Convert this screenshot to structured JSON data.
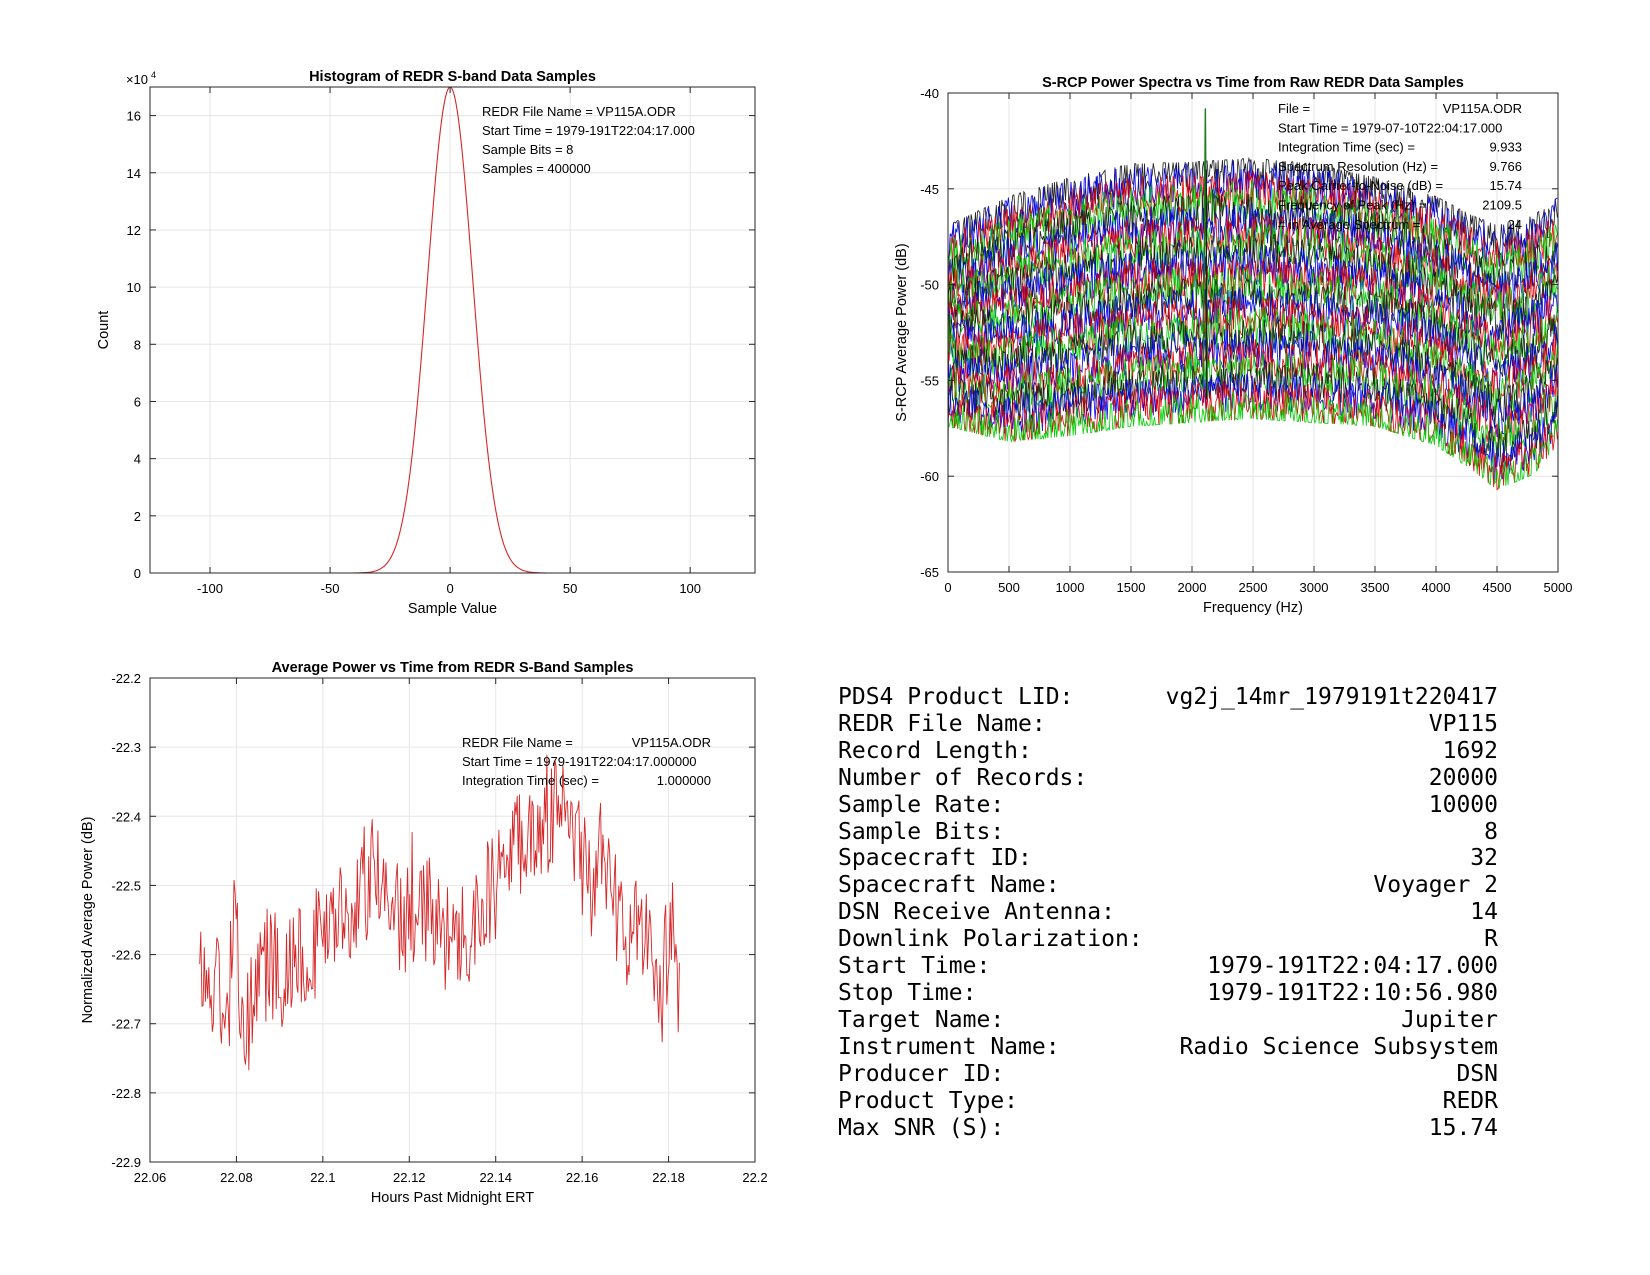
{
  "chart_data": [
    {
      "type": "line",
      "title": "Histogram of REDR S-band Data Samples",
      "xlabel": "Sample Value",
      "ylabel": "Count",
      "xlim": [
        -125,
        127
      ],
      "ylim": [
        0,
        170000
      ],
      "x_ticks": [
        -100,
        -50,
        0,
        50,
        100
      ],
      "y_ticks": [
        0,
        2,
        4,
        6,
        8,
        10,
        12,
        14,
        16
      ],
      "y_exponent_label": "×10",
      "y_exponent_power": "4",
      "grid": true,
      "distribution": {
        "shape": "gaussian",
        "center": 0,
        "peak": 170000,
        "sigma": 9.4
      },
      "series": [
        {
          "color": "#d62728",
          "x": [
            -40,
            40
          ],
          "y": [
            0,
            0
          ]
        }
      ],
      "annotations": [
        "REDR File Name = VP115A.ODR",
        "Start Time = 1979-191T22:04:17.000",
        "Sample Bits = 8",
        "Samples = 400000"
      ]
    },
    {
      "type": "line",
      "title": "S-RCP Power Spectra vs Time from Raw REDR Data Samples",
      "xlabel": "Frequency (Hz)",
      "ylabel": "S-RCP Average Power (dB)",
      "xlim": [
        0,
        5000
      ],
      "ylim": [
        -65,
        -40
      ],
      "x_ticks": [
        0,
        500,
        1000,
        1500,
        2000,
        2500,
        3000,
        3500,
        4000,
        4500,
        5000
      ],
      "y_ticks": [
        -65,
        -60,
        -55,
        -50,
        -45,
        -40
      ],
      "grid": true,
      "traces": 24,
      "trace_colors": [
        "#1a1a1a",
        "#0000ee",
        "#dd0000",
        "#00cc00"
      ],
      "peak": {
        "frequency": 2109.5,
        "level": -40.8
      },
      "envelope": {
        "x": [
          0,
          500,
          1000,
          1500,
          2000,
          2500,
          3000,
          3500,
          4000,
          4300,
          4500,
          4800,
          5000
        ],
        "upper": [
          -47.5,
          -46.0,
          -45.0,
          -44.3,
          -44.2,
          -44.0,
          -44.3,
          -45.0,
          -46.0,
          -47.0,
          -47.5,
          -47.0,
          -46.0
        ],
        "lower": [
          -57.0,
          -57.8,
          -57.5,
          -57.0,
          -56.8,
          -56.6,
          -56.8,
          -57.0,
          -58.0,
          -59.3,
          -60.3,
          -59.5,
          -58.0
        ]
      },
      "annotations": [
        {
          "label": "File =",
          "value": "VP115A.ODR"
        },
        {
          "label": "Start Time = 1979-07-10T22:04:17.000",
          "value": ""
        },
        {
          "label": "Integration Time (sec) =",
          "value": "9.933"
        },
        {
          "label": "Spectrum Resolution (Hz) =",
          "value": "9.766"
        },
        {
          "label": "Peak Carrier-to-Noise (dB) =",
          "value": "15.74"
        },
        {
          "label": "Frequency of Peak (Hz) =",
          "value": "2109.5"
        },
        {
          "label": "# in Average Spectrum =",
          "value": "24"
        }
      ]
    },
    {
      "type": "line",
      "title": "Average Power vs Time from REDR S-Band Samples",
      "xlabel": "Hours Past Midnight ERT",
      "ylabel": "Normalized Average Power (dB)",
      "xlim": [
        22.06,
        22.2
      ],
      "ylim": [
        -22.9,
        -22.2
      ],
      "x_ticks": [
        22.06,
        22.08,
        22.1,
        22.12,
        22.14,
        22.16,
        22.18,
        22.2
      ],
      "y_ticks": [
        -22.9,
        -22.8,
        -22.7,
        -22.6,
        -22.5,
        -22.4,
        -22.3,
        -22.2
      ],
      "grid": true,
      "series": [
        {
          "color": "#d62728",
          "x": [
            22.0715,
            22.074,
            22.076,
            22.078,
            22.0795,
            22.081,
            22.083,
            22.085,
            22.088,
            22.091,
            22.094,
            22.097,
            22.1,
            22.103,
            22.106,
            22.109,
            22.111,
            22.113,
            22.116,
            22.119,
            22.122,
            22.125,
            22.128,
            22.13,
            22.1325,
            22.135,
            22.138,
            22.141,
            22.144,
            22.147,
            22.15,
            22.153,
            22.156,
            22.159,
            22.162,
            22.165,
            22.168,
            22.171,
            22.174,
            22.177,
            22.1795,
            22.181,
            22.1825
          ],
          "y": [
            -22.62,
            -22.66,
            -22.64,
            -22.7,
            -22.55,
            -22.65,
            -22.7,
            -22.62,
            -22.61,
            -22.63,
            -22.58,
            -22.6,
            -22.56,
            -22.55,
            -22.55,
            -22.52,
            -22.48,
            -22.5,
            -22.52,
            -22.56,
            -22.53,
            -22.54,
            -22.57,
            -22.59,
            -22.55,
            -22.56,
            -22.52,
            -22.49,
            -22.44,
            -22.42,
            -22.41,
            -22.4,
            -22.41,
            -22.44,
            -22.5,
            -22.48,
            -22.52,
            -22.58,
            -22.56,
            -22.62,
            -22.6,
            -22.55,
            -22.66
          ]
        }
      ],
      "annotations": [
        {
          "label": "REDR File Name =",
          "value": "VP115A.ODR"
        },
        {
          "label": "Start Time = 1979-191T22:04:17.000000",
          "value": ""
        },
        {
          "label": "Integration Time (sec) =",
          "value": "1.000000"
        }
      ]
    }
  ],
  "info_table": [
    {
      "label": "PDS4 Product LID:",
      "value": "vg2j_14mr_1979191t220417"
    },
    {
      "label": "REDR File Name:",
      "value": "VP115"
    },
    {
      "label": "Record Length:",
      "value": "1692"
    },
    {
      "label": "Number of Records:",
      "value": "20000"
    },
    {
      "label": "Sample Rate:",
      "value": "10000"
    },
    {
      "label": "Sample Bits:",
      "value": "8"
    },
    {
      "label": "Spacecraft ID:",
      "value": "32"
    },
    {
      "label": "Spacecraft Name:",
      "value": "Voyager 2"
    },
    {
      "label": "DSN Receive Antenna:",
      "value": "14"
    },
    {
      "label": "Downlink Polarization:",
      "value": "R"
    },
    {
      "label": "Start Time:",
      "value": "1979-191T22:04:17.000"
    },
    {
      "label": "Stop Time:",
      "value": "1979-191T22:10:56.980"
    },
    {
      "label": "Target Name:",
      "value": "Jupiter"
    },
    {
      "label": "Instrument Name:",
      "value": "Radio Science Subsystem"
    },
    {
      "label": "Producer ID:",
      "value": "DSN"
    },
    {
      "label": "Product Type:",
      "value": "REDR"
    },
    {
      "label": "Max SNR (S):",
      "value": "15.74"
    }
  ]
}
